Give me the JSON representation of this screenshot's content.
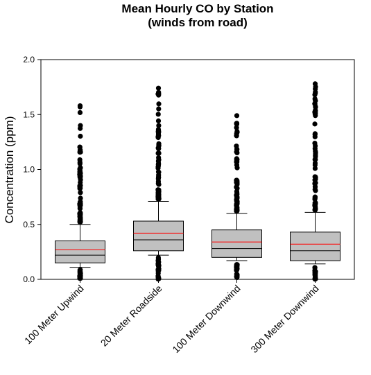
{
  "chart_data": {
    "type": "box",
    "title": "Mean Hourly CO by Station",
    "subtitle": "(winds from road)",
    "xlabel": "",
    "ylabel": "Concentration (ppm)",
    "ylim": [
      0.0,
      2.0
    ],
    "yticks": [
      "0.0",
      "0.5",
      "1.0",
      "1.5",
      "2.0"
    ],
    "grid": false,
    "colors": {
      "box_fill": "#c0c0c0",
      "median": "#000000",
      "mean": "#ff0000",
      "outlier": "#000000"
    },
    "categories": [
      "100 Meter Upwind",
      "20 Meter Roadside",
      "100 Meter Downwind",
      "300 Meter Downwind"
    ],
    "boxes": [
      {
        "whisker_low": 0.11,
        "q1": 0.15,
        "median": 0.22,
        "mean": 0.27,
        "q3": 0.35,
        "whisker_high": 0.5,
        "outlier_max": 1.58,
        "outlier_min": 0.0
      },
      {
        "whisker_low": 0.22,
        "q1": 0.26,
        "median": 0.36,
        "mean": 0.42,
        "q3": 0.53,
        "whisker_high": 0.71,
        "outlier_max": 1.74,
        "outlier_min": 0.0
      },
      {
        "whisker_low": 0.17,
        "q1": 0.2,
        "median": 0.28,
        "mean": 0.34,
        "q3": 0.45,
        "whisker_high": 0.6,
        "outlier_max": 1.49,
        "outlier_min": 0.0
      },
      {
        "whisker_low": 0.14,
        "q1": 0.17,
        "median": 0.26,
        "mean": 0.32,
        "q3": 0.43,
        "whisker_high": 0.61,
        "outlier_max": 1.78,
        "outlier_min": 0.0
      }
    ]
  }
}
